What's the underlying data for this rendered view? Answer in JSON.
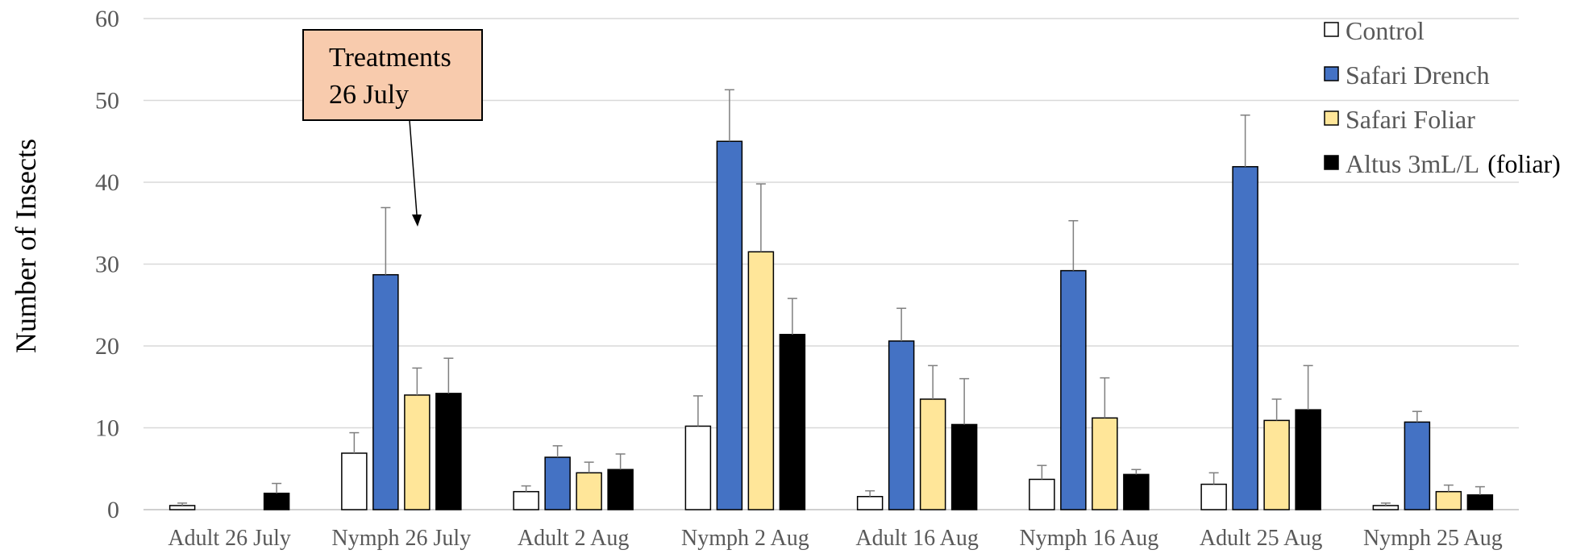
{
  "chart_data": {
    "type": "bar",
    "ylabel": "Number of Insects",
    "ylim": [
      0,
      60
    ],
    "yticks": [
      0,
      10,
      20,
      30,
      40,
      50,
      60
    ],
    "grid": true,
    "legend_position": "top-right",
    "categories": [
      "Adult 26 July",
      "Nymph 26 July",
      "Adult 2 Aug",
      "Nymph 2 Aug",
      "Adult 16 Aug",
      "Nymph 16 Aug",
      "Adult 25 Aug",
      "Nymph 25 Aug"
    ],
    "series": [
      {
        "name": "Control",
        "color": "#ffffff",
        "values": [
          0.5,
          6.9,
          2.2,
          10.2,
          1.6,
          3.7,
          3.1,
          0.5
        ],
        "errors": [
          0.3,
          2.5,
          0.7,
          3.7,
          0.7,
          1.7,
          1.4,
          0.3
        ]
      },
      {
        "name": "Safari Drench",
        "color": "#4472c4",
        "values": [
          0,
          28.7,
          6.4,
          45.0,
          20.6,
          29.2,
          41.9,
          10.7
        ],
        "errors": [
          0,
          8.2,
          1.4,
          6.3,
          4.0,
          6.1,
          6.3,
          1.3
        ]
      },
      {
        "name": "Safari Foliar",
        "color": "#ffe699",
        "values": [
          0,
          14.0,
          4.5,
          31.5,
          13.5,
          11.2,
          10.9,
          2.2
        ],
        "errors": [
          0,
          3.3,
          1.3,
          8.3,
          4.1,
          4.9,
          2.6,
          0.8
        ]
      },
      {
        "name": "Altus 3mL/L",
        "name_suffix": "(foliar)",
        "color": "#000000",
        "values": [
          2.0,
          14.2,
          4.9,
          21.4,
          10.4,
          4.3,
          12.2,
          1.8
        ],
        "errors": [
          1.2,
          4.3,
          1.9,
          4.4,
          5.6,
          0.6,
          5.4,
          1.0
        ]
      }
    ],
    "annotation": {
      "lines": [
        "Treatments",
        "26 July"
      ],
      "fill": "#f8cbad",
      "points_to": "Nymph 26 July"
    }
  }
}
